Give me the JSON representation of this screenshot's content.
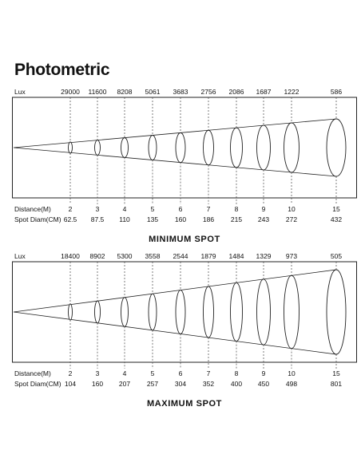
{
  "title": "Photometric",
  "row_labels": {
    "lux": "Lux",
    "distance": "Distance(M)",
    "diameter": "Spot Diam(CM)"
  },
  "panels": [
    {
      "name": "MINIMUM SPOT",
      "columns": [
        {
          "lux": "29000",
          "distance": "2",
          "diameter": "62.5"
        },
        {
          "lux": "11600",
          "distance": "3",
          "diameter": "87.5"
        },
        {
          "lux": "8208",
          "distance": "4",
          "diameter": "110"
        },
        {
          "lux": "5061",
          "distance": "5",
          "diameter": "135"
        },
        {
          "lux": "3683",
          "distance": "6",
          "diameter": "160"
        },
        {
          "lux": "2756",
          "distance": "7",
          "diameter": "186"
        },
        {
          "lux": "2086",
          "distance": "8",
          "diameter": "215"
        },
        {
          "lux": "1687",
          "distance": "9",
          "diameter": "243"
        },
        {
          "lux": "1222",
          "distance": "10",
          "diameter": "272"
        },
        {
          "lux": "586",
          "distance": "15",
          "diameter": "432"
        }
      ]
    },
    {
      "name": "MAXIMUM SPOT",
      "columns": [
        {
          "lux": "18400",
          "distance": "2",
          "diameter": "104"
        },
        {
          "lux": "8902",
          "distance": "3",
          "diameter": "160"
        },
        {
          "lux": "5300",
          "distance": "4",
          "diameter": "207"
        },
        {
          "lux": "3558",
          "distance": "5",
          "diameter": "257"
        },
        {
          "lux": "2544",
          "distance": "6",
          "diameter": "304"
        },
        {
          "lux": "1879",
          "distance": "7",
          "diameter": "352"
        },
        {
          "lux": "1484",
          "distance": "8",
          "diameter": "400"
        },
        {
          "lux": "1329",
          "distance": "9",
          "diameter": "450"
        },
        {
          "lux": "973",
          "distance": "10",
          "diameter": "498"
        },
        {
          "lux": "505",
          "distance": "15",
          "diameter": "801"
        }
      ]
    }
  ]
}
